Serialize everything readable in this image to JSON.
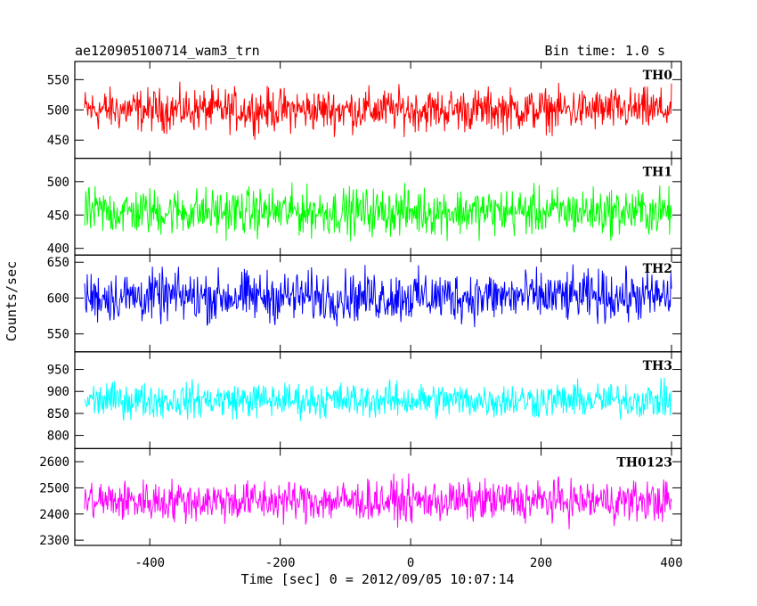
{
  "chart_data": {
    "type": "line",
    "title": "ae120905100714_wam3_trn",
    "subtitle": "Bin time: 1.0 s",
    "xlabel": "Time [sec] 0 = 2012/09/05 10:07:14",
    "ylabel": "Counts/sec",
    "xlim": [
      -515,
      415
    ],
    "x_ticks": [
      -400,
      -200,
      0,
      200,
      400
    ],
    "bin_time_s": 1.0,
    "grid": false,
    "series": [
      {
        "name": "TH0",
        "color": "#ff0000",
        "mean": 500,
        "amplitude": 40,
        "ylim": [
          420,
          580
        ],
        "y_ticks": [
          450,
          500,
          550
        ]
      },
      {
        "name": "TH1",
        "color": "#00ff00",
        "mean": 455,
        "amplitude": 40,
        "ylim": [
          390,
          535
        ],
        "y_ticks": [
          400,
          450,
          500
        ]
      },
      {
        "name": "TH2",
        "color": "#0000ff",
        "mean": 602,
        "amplitude": 40,
        "ylim": [
          525,
          660
        ],
        "y_ticks": [
          550,
          600,
          650
        ]
      },
      {
        "name": "TH3",
        "color": "#00ffff",
        "mean": 880,
        "amplitude": 45,
        "ylim": [
          770,
          990
        ],
        "y_ticks": [
          800,
          850,
          900,
          950
        ]
      },
      {
        "name": "TH0123",
        "color": "#ff00ff",
        "mean": 2450,
        "amplitude": 90,
        "ylim": [
          2280,
          2650
        ],
        "y_ticks": [
          2300,
          2400,
          2500,
          2600
        ]
      }
    ]
  }
}
